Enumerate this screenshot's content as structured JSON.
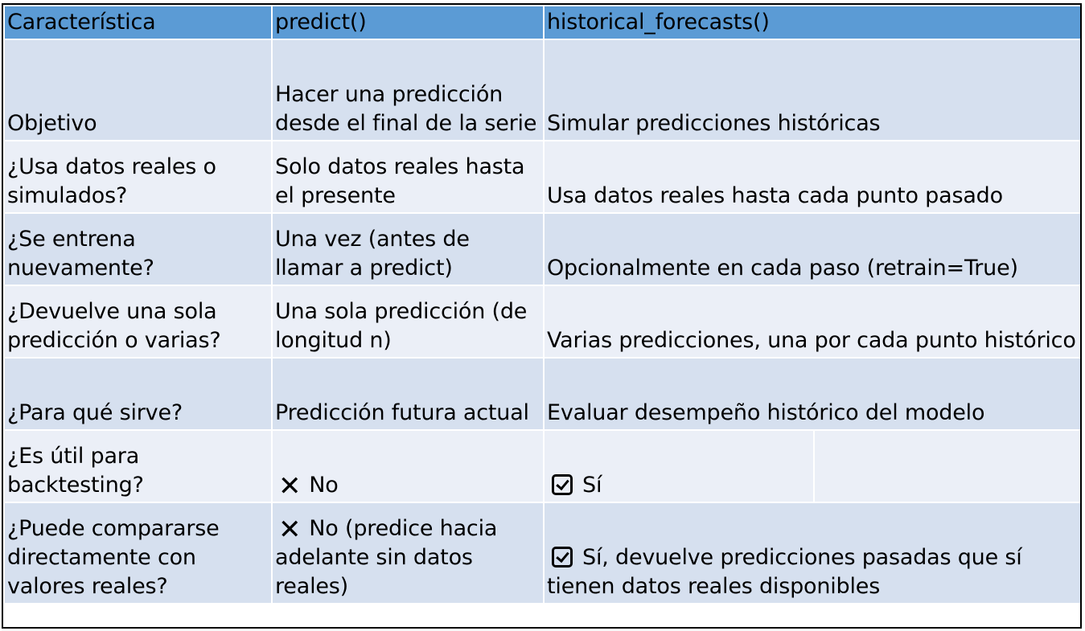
{
  "header": {
    "col1": "Característica",
    "col2": "predict()",
    "col3": "historical_forecasts()"
  },
  "rows": [
    {
      "feature": "Objetivo",
      "predict": "Hacer una predicción desde el final de la serie",
      "historical": "Simular predicciones históricas"
    },
    {
      "feature": "¿Usa datos reales o simulados?",
      "predict": "Solo datos reales hasta el presente",
      "historical": "Usa datos reales hasta cada punto pasado"
    },
    {
      "feature": "¿Se entrena nuevamente?",
      "predict": "Una vez (antes de llamar a predict)",
      "historical": "Opcionalmente en cada paso (retrain=True)"
    },
    {
      "feature": "¿Devuelve una sola predicción o varias?",
      "predict": "Una sola predicción (de longitud n)",
      "historical": "Varias predicciones, una por cada punto histórico"
    },
    {
      "feature": "¿Para qué sirve?",
      "predict": "Predicción futura actual",
      "historical": "Evaluar desempeño histórico del modelo"
    },
    {
      "feature": "¿Es útil para backtesting?",
      "predict": "No",
      "predict_icon": "cross-mark-icon",
      "historical": "Sí",
      "historical_icon": "checked-box-icon"
    },
    {
      "feature": "¿Puede compararse directamente con valores reales?",
      "predict": "No (predice hacia adelante sin datos reales)",
      "predict_icon": "cross-mark-icon",
      "historical": "Sí, devuelve predicciones pasadas que sí tienen datos reales disponibles",
      "historical_icon": "checked-box-icon"
    }
  ],
  "colors": {
    "header_bg": "#5b9bd5",
    "row_odd_bg": "#d6e0ef",
    "row_even_bg": "#ebeff7",
    "border": "#000000",
    "cell_divider": "#ffffff"
  }
}
